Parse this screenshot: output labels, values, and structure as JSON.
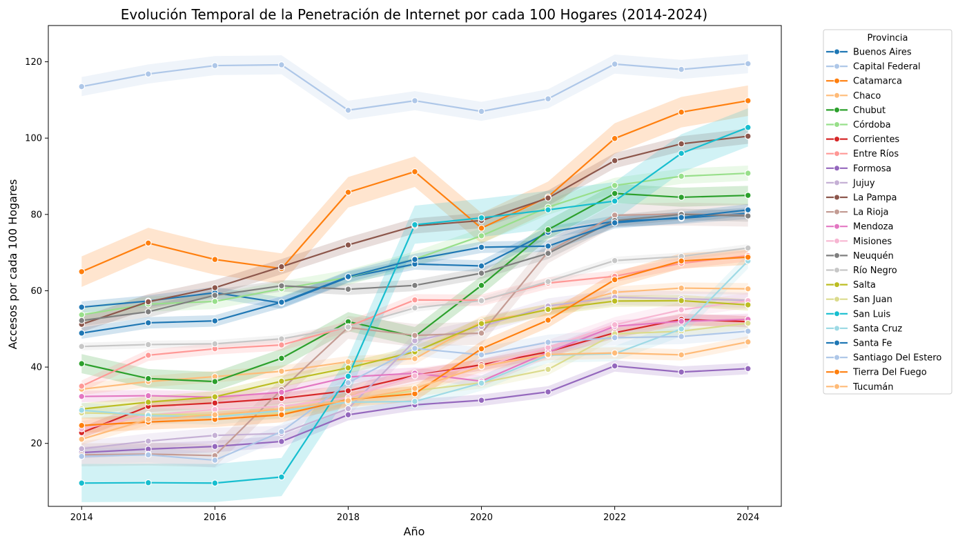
{
  "chart_data": {
    "type": "line",
    "title": "Evolución Temporal de la Penetración de Internet por cada 100 Hogares (2014-2024)",
    "xlabel": "Año",
    "ylabel": "Accesos por cada 100 Hogares",
    "xlim": [
      2013.5,
      2024.5
    ],
    "ylim": [
      3.5,
      129.5
    ],
    "xticks": [
      2014,
      2016,
      2018,
      2020,
      2022,
      2024
    ],
    "yticks": [
      20,
      40,
      60,
      80,
      100,
      120
    ],
    "legend_title": "Provincia",
    "legend_position": "outside-right",
    "x": [
      2014,
      2015,
      2016,
      2017,
      2018,
      2019,
      2020,
      2021,
      2022,
      2023,
      2024
    ],
    "series": [
      {
        "name": "Buenos Aires",
        "color": "#1f77b4",
        "values": [
          55.7,
          57.3,
          59.5,
          56.8,
          63.5,
          67.0,
          66.5,
          75.3,
          78.2,
          79.0,
          80.3
        ],
        "band": 1.5
      },
      {
        "name": "Capital Federal",
        "color": "#aec7e8",
        "values": [
          113.5,
          116.8,
          119.0,
          119.2,
          107.3,
          109.8,
          107.0,
          110.3,
          119.4,
          118.0,
          119.5
        ],
        "band": 2.5
      },
      {
        "name": "Catamarca",
        "color": "#ff7f0e",
        "values": [
          65.0,
          72.5,
          68.2,
          65.8,
          85.8,
          91.2,
          76.4,
          84.6,
          99.9,
          106.8,
          109.8
        ],
        "band": 4.0
      },
      {
        "name": "Chaco",
        "color": "#ffbb78",
        "values": [
          34.2,
          36.2,
          37.5,
          38.9,
          41.4,
          42.2,
          51.9,
          55.0,
          59.6,
          60.7,
          60.5
        ],
        "band": 1.5
      },
      {
        "name": "Chubut",
        "color": "#2ca02c",
        "values": [
          40.9,
          37.0,
          36.2,
          42.3,
          51.9,
          48.0,
          61.4,
          76.0,
          85.5,
          84.5,
          85.0
        ],
        "band": 2.5
      },
      {
        "name": "Córdoba",
        "color": "#98df8a",
        "values": [
          53.7,
          56.5,
          57.2,
          60.5,
          63.5,
          68.3,
          74.4,
          81.9,
          87.6,
          90.0,
          90.8
        ],
        "band": 2.0
      },
      {
        "name": "Corrientes",
        "color": "#d62728",
        "values": [
          22.8,
          29.7,
          30.6,
          31.8,
          33.8,
          37.8,
          40.6,
          44.0,
          49.0,
          52.5,
          51.9
        ],
        "band": 1.5
      },
      {
        "name": "Entre Ríos",
        "color": "#ff9896",
        "values": [
          35.0,
          43.1,
          44.8,
          45.8,
          50.6,
          57.6,
          57.5,
          62.0,
          63.8,
          67.2,
          69.2
        ],
        "band": 1.5
      },
      {
        "name": "Formosa",
        "color": "#9467bd",
        "values": [
          17.6,
          18.5,
          19.2,
          20.5,
          27.5,
          30.1,
          31.3,
          33.5,
          40.3,
          38.7,
          39.6
        ],
        "band": 1.5
      },
      {
        "name": "Jujuy",
        "color": "#c5b0d5",
        "values": [
          18.6,
          20.6,
          22.1,
          22.6,
          29.1,
          46.9,
          50.6,
          56.0,
          58.3,
          57.9,
          57.5
        ],
        "band": 2.0
      },
      {
        "name": "La Pampa",
        "color": "#8c564b",
        "values": [
          51.2,
          57.1,
          60.8,
          66.3,
          72.0,
          77.0,
          78.4,
          84.3,
          94.1,
          98.5,
          100.5
        ],
        "band": 2.0
      },
      {
        "name": "La Rioja",
        "color": "#c49c94",
        "values": [
          17.0,
          17.2,
          16.8,
          34.1,
          50.4,
          48.3,
          48.9,
          70.2,
          79.8,
          80.1,
          79.8
        ],
        "band": 3.0
      },
      {
        "name": "Mendoza",
        "color": "#e377c2",
        "values": [
          32.3,
          32.5,
          32.1,
          33.4,
          37.4,
          38.4,
          36.3,
          43.9,
          50.7,
          52.0,
          52.5
        ],
        "band": 1.5
      },
      {
        "name": "Misiones",
        "color": "#f7b6d2",
        "values": [
          23.8,
          27.4,
          28.9,
          29.7,
          32.0,
          37.7,
          40.1,
          45.1,
          51.1,
          55.0,
          57.4
        ],
        "band": 2.0
      },
      {
        "name": "Neuquén",
        "color": "#7f7f7f",
        "values": [
          52.2,
          54.5,
          58.8,
          61.3,
          60.4,
          61.4,
          64.6,
          69.8,
          78.4,
          80.0,
          79.6
        ],
        "band": 1.5
      },
      {
        "name": "Río Negro",
        "color": "#c7c7c7",
        "values": [
          45.4,
          45.9,
          46.1,
          47.4,
          50.5,
          55.5,
          57.4,
          62.4,
          67.9,
          69.0,
          71.2
        ],
        "band": 1.0
      },
      {
        "name": "Salta",
        "color": "#bcbd22",
        "values": [
          29.0,
          30.8,
          32.2,
          36.3,
          39.8,
          44.0,
          51.4,
          55.1,
          57.3,
          57.4,
          56.3
        ],
        "band": 1.5
      },
      {
        "name": "San Juan",
        "color": "#dbdb8d",
        "values": [
          28.0,
          27.6,
          27.5,
          27.9,
          31.2,
          33.8,
          35.9,
          39.4,
          48.7,
          49.4,
          51.5
        ],
        "band": 1.5
      },
      {
        "name": "San Luis",
        "color": "#17becf",
        "values": [
          9.6,
          9.7,
          9.6,
          11.2,
          37.6,
          77.3,
          79.1,
          81.2,
          83.5,
          96.0,
          102.8
        ],
        "band": 5.0
      },
      {
        "name": "Santa Cruz",
        "color": "#9edae5",
        "values": [
          28.7,
          27.3,
          26.9,
          28.6,
          30.8,
          31.0,
          35.8,
          43.1,
          43.5,
          50.0,
          67.8
        ],
        "band": 2.0
      },
      {
        "name": "Santa Fe",
        "color": "#1f77b4",
        "values": [
          48.9,
          51.6,
          52.1,
          57.0,
          63.7,
          68.2,
          71.4,
          71.7,
          77.8,
          79.2,
          81.2
        ],
        "band": 1.5
      },
      {
        "name": "Santiago Del Estero",
        "color": "#aec7e8",
        "values": [
          16.6,
          17.0,
          15.6,
          23.1,
          35.9,
          44.9,
          43.2,
          46.5,
          47.7,
          48.0,
          49.4
        ],
        "band": 2.0
      },
      {
        "name": "Tierra Del Fuego",
        "color": "#ff7f0e",
        "values": [
          24.7,
          25.6,
          26.3,
          27.5,
          31.5,
          33.0,
          44.8,
          52.3,
          62.9,
          67.8,
          68.8
        ],
        "band": 2.0
      },
      {
        "name": "Tucumán",
        "color": "#ffbb78",
        "values": [
          21.1,
          26.3,
          27.5,
          29.0,
          31.2,
          34.4,
          40.2,
          43.3,
          43.7,
          43.2,
          46.6
        ],
        "band": 1.5
      }
    ]
  }
}
